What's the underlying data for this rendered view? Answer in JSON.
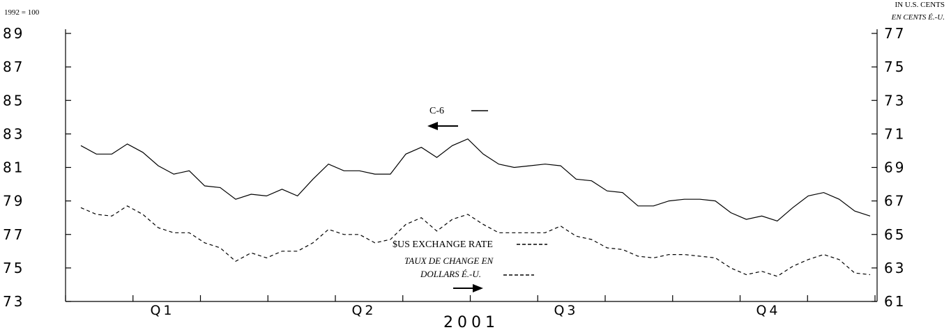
{
  "chart_data": {
    "type": "line",
    "left_axis_note": "1992 = 100",
    "right_axis_note_1": "IN U.S. CENTS",
    "right_axis_note_2": "EN CENTS É.-U.",
    "left_ylim": [
      73,
      89
    ],
    "right_ylim": [
      61,
      77
    ],
    "left_ticks": [
      "89",
      "87",
      "85",
      "83",
      "81",
      "79",
      "77",
      "75",
      "73"
    ],
    "right_ticks": [
      "77",
      "75",
      "73",
      "71",
      "69",
      "67",
      "65",
      "63",
      "61"
    ],
    "quarters": [
      "Q1",
      "Q2",
      "Q3",
      "Q4"
    ],
    "year_label": "2001",
    "legend": {
      "c6_label": "C-6",
      "fx_label_1": "$US EXCHANGE RATE",
      "fx_label_2": "TAUX DE CHANGE EN",
      "fx_label_3": "DOLLARS É.-U."
    },
    "series": [
      {
        "name": "C-6",
        "axis": "left",
        "style": "solid",
        "values": [
          82.3,
          81.8,
          81.8,
          82.4,
          81.9,
          81.1,
          80.6,
          80.8,
          79.9,
          79.8,
          79.1,
          79.4,
          79.3,
          79.7,
          79.3,
          80.3,
          81.2,
          80.8,
          80.8,
          80.6,
          80.6,
          81.8,
          82.2,
          81.6,
          82.3,
          82.7,
          81.8,
          81.2,
          81.0,
          81.1,
          81.2,
          81.1,
          80.3,
          80.2,
          79.6,
          79.5,
          78.7,
          78.7,
          79.0,
          79.1,
          79.1,
          79.0,
          78.3,
          77.9,
          78.1,
          77.8,
          78.6,
          79.3,
          79.5,
          79.1,
          78.4,
          78.1
        ]
      },
      {
        "name": "$US EXCHANGE RATE",
        "axis": "right",
        "style": "dashed",
        "values": [
          66.6,
          66.2,
          66.1,
          66.7,
          66.2,
          65.4,
          65.1,
          65.1,
          64.5,
          64.2,
          63.4,
          63.9,
          63.6,
          64.0,
          64.0,
          64.5,
          65.3,
          65.0,
          65.0,
          64.5,
          64.7,
          65.6,
          66.0,
          65.2,
          65.9,
          66.2,
          65.6,
          65.1,
          65.1,
          65.1,
          65.1,
          65.5,
          64.9,
          64.7,
          64.2,
          64.1,
          63.7,
          63.6,
          63.8,
          63.8,
          63.7,
          63.6,
          63.0,
          62.6,
          62.8,
          62.5,
          63.1,
          63.5,
          63.8,
          63.5,
          62.7,
          62.6
        ]
      }
    ]
  }
}
